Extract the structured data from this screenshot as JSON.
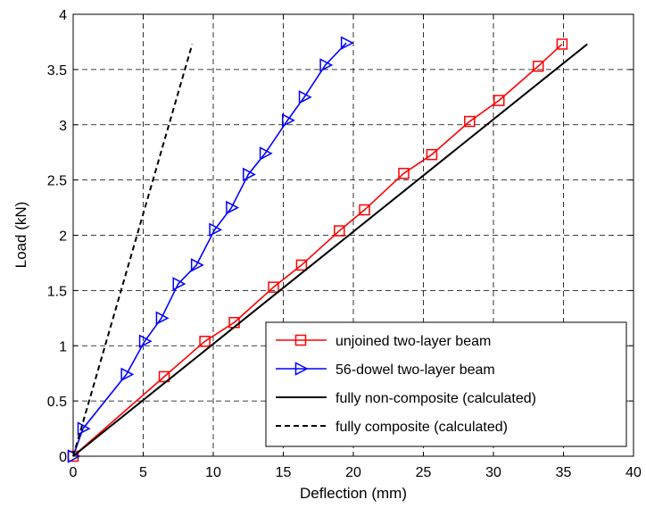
{
  "chart_data": {
    "type": "line",
    "xlabel": "Deflection (mm)",
    "ylabel": "Load (kN)",
    "xlim": [
      0,
      40
    ],
    "ylim": [
      0,
      4
    ],
    "grid": true,
    "grid_style": "dashed",
    "legend_position": "bottom-right",
    "x_ticks": [
      0,
      5,
      10,
      15,
      20,
      25,
      30,
      35,
      40
    ],
    "y_ticks": [
      0,
      0.5,
      1,
      1.5,
      2,
      2.5,
      3,
      3.5,
      4
    ],
    "x_tick_labels": [
      "0",
      "5",
      "10",
      "15",
      "20",
      "25",
      "30",
      "35",
      "40"
    ],
    "y_tick_labels": [
      "0",
      "0.5",
      "1",
      "1.5",
      "2",
      "2.5",
      "3",
      "3.5",
      "4"
    ],
    "series": [
      {
        "name": "unjoined two-layer beam",
        "color": "#ff0000",
        "line_style": "solid",
        "marker": "square",
        "points": [
          [
            0,
            0
          ],
          [
            6.5,
            0.72
          ],
          [
            9.4,
            1.04
          ],
          [
            11.5,
            1.21
          ],
          [
            14.3,
            1.53
          ],
          [
            16.3,
            1.73
          ],
          [
            19.0,
            2.04
          ],
          [
            20.8,
            2.23
          ],
          [
            23.6,
            2.56
          ],
          [
            25.6,
            2.73
          ],
          [
            28.3,
            3.03
          ],
          [
            30.4,
            3.22
          ],
          [
            33.2,
            3.53
          ],
          [
            34.9,
            3.73
          ]
        ]
      },
      {
        "name": "56-dowel two-layer beam",
        "color": "#0000ff",
        "line_style": "solid",
        "marker": "triangle-right",
        "points": [
          [
            0,
            0
          ],
          [
            0.7,
            0.25
          ],
          [
            3.8,
            0.74
          ],
          [
            5.1,
            1.04
          ],
          [
            6.3,
            1.25
          ],
          [
            7.5,
            1.56
          ],
          [
            8.8,
            1.73
          ],
          [
            10.1,
            2.05
          ],
          [
            11.3,
            2.25
          ],
          [
            12.5,
            2.55
          ],
          [
            13.7,
            2.74
          ],
          [
            15.3,
            3.04
          ],
          [
            16.5,
            3.25
          ],
          [
            18.0,
            3.54
          ],
          [
            19.5,
            3.74
          ]
        ]
      },
      {
        "name": "fully non-composite (calculated)",
        "color": "#000000",
        "line_style": "solid",
        "marker": "none",
        "points": [
          [
            0,
            0
          ],
          [
            36.7,
            3.73
          ]
        ]
      },
      {
        "name": "fully composite (calculated)",
        "color": "#000000",
        "line_style": "dashed",
        "marker": "none",
        "points": [
          [
            0,
            0
          ],
          [
            8.5,
            3.73
          ]
        ]
      }
    ]
  }
}
